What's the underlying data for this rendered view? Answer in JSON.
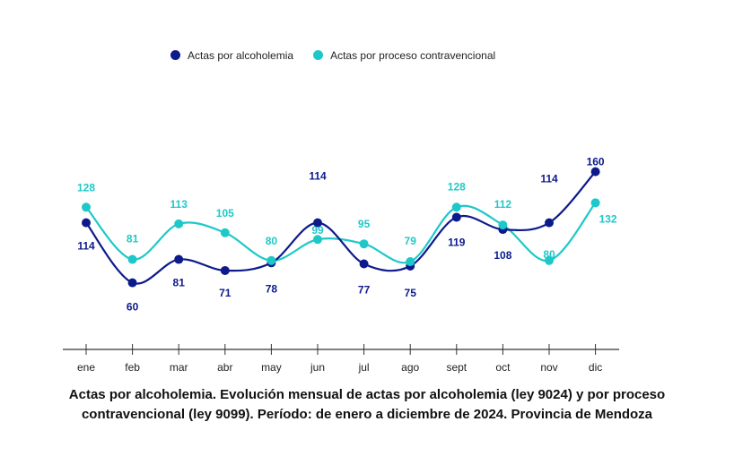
{
  "chart_data": {
    "type": "line",
    "categories": [
      "ene",
      "feb",
      "mar",
      "abr",
      "may",
      "jun",
      "jul",
      "ago",
      "sept",
      "oct",
      "nov",
      "dic"
    ],
    "series": [
      {
        "name": "Actas por alcoholemia",
        "color": "#0d1a8c",
        "values": [
          114,
          60,
          81,
          71,
          78,
          114,
          77,
          75,
          119,
          108,
          114,
          160
        ]
      },
      {
        "name": "Actas por proceso contravencional",
        "color": "#1fc8c8",
        "values": [
          128,
          81,
          113,
          105,
          80,
          99,
          95,
          79,
          128,
          112,
          80,
          132
        ]
      }
    ],
    "ylim": [
      0,
      170
    ],
    "grid": false,
    "legend": "top",
    "smooth": true,
    "data_labels": true
  },
  "caption": {
    "line1": "Actas por alcoholemia. Evolución mensual de actas por alcoholemia (ley 9024) y por proceso",
    "line2": "contravencional (ley 9099). Período: de enero a diciembre de 2024. Provincia de Mendoza"
  }
}
